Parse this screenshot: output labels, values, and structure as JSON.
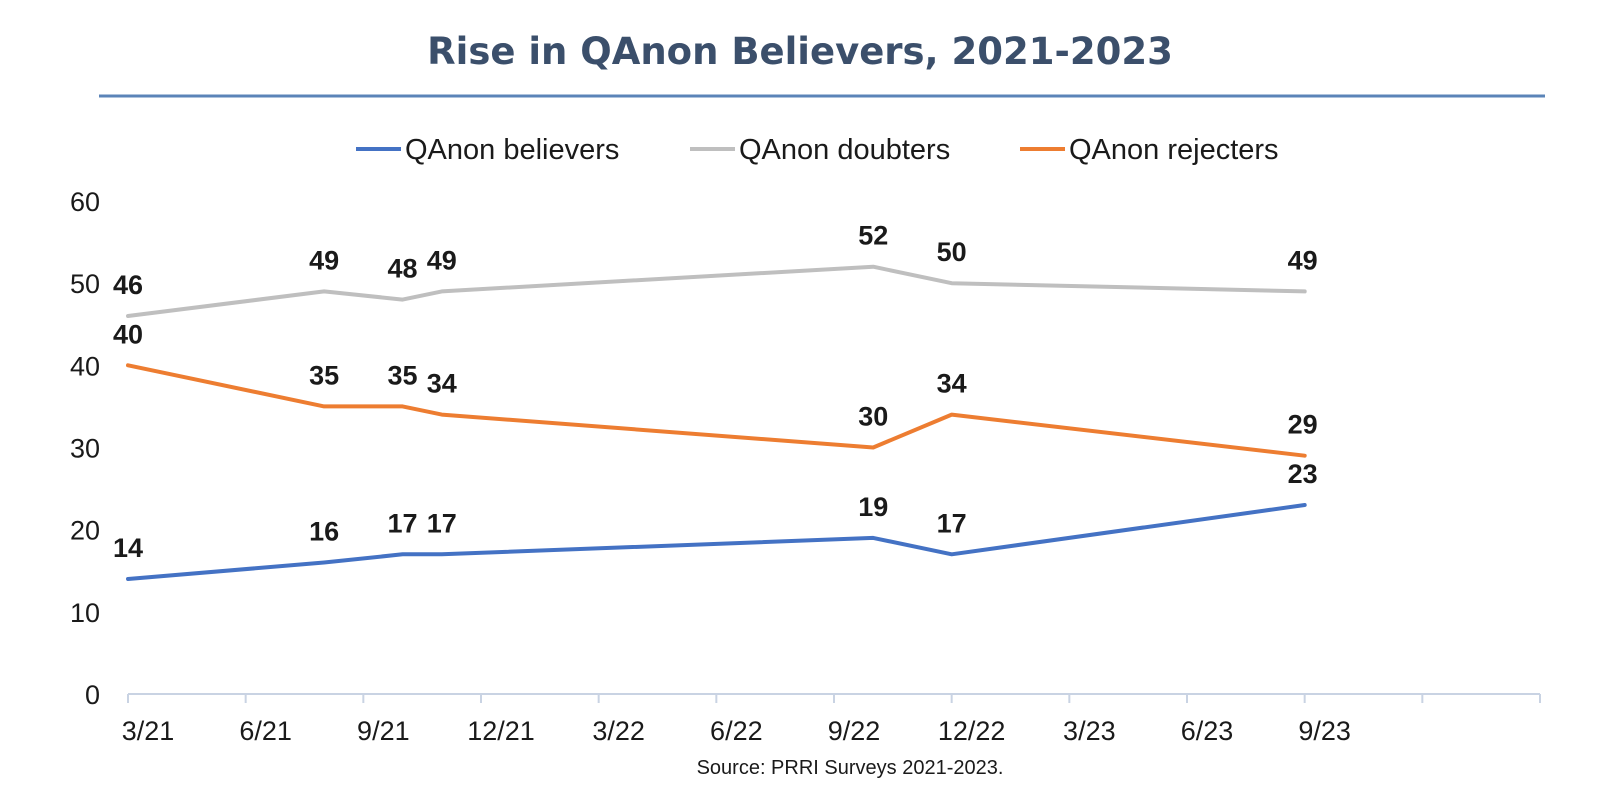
{
  "chart_data": {
    "type": "line",
    "title": "Rise in QAnon Believers, 2021-2023",
    "source": "Source: PRRI Surveys 2021-2023.",
    "xlabel": "",
    "ylabel": "",
    "ylim": [
      0,
      60
    ],
    "yticks": [
      "0",
      "10",
      "20",
      "30",
      "40",
      "50",
      "60"
    ],
    "xticks": [
      "3/21",
      "6/21",
      "9/21",
      "12/21",
      "3/22",
      "6/22",
      "9/22",
      "12/22",
      "3/23",
      "6/23",
      "9/23"
    ],
    "x": [
      "2021-03",
      "2021-08",
      "2021-10",
      "2021-11",
      "2022-10",
      "2022-12",
      "2023-09"
    ],
    "grid": false,
    "legend_position": "top-center",
    "series": [
      {
        "name": "QAnon believers",
        "color": "#4472c4",
        "values": [
          14,
          16,
          17,
          17,
          19,
          17,
          23
        ]
      },
      {
        "name": "QAnon doubters",
        "color": "#bfbfbf",
        "values": [
          46,
          49,
          48,
          49,
          52,
          50,
          49
        ]
      },
      {
        "name": "QAnon rejecters",
        "color": "#ed7d31",
        "values": [
          40,
          35,
          35,
          34,
          30,
          34,
          29
        ]
      }
    ],
    "title_rule_color": "#5b84b8",
    "axis_color": "#c9d3e3"
  }
}
